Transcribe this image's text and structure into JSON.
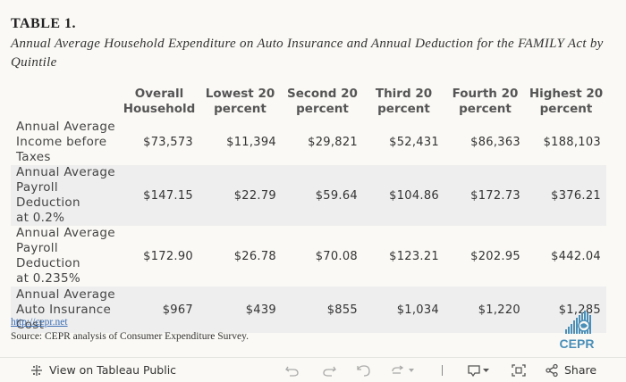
{
  "title": "TABLE 1.",
  "subtitle": "Annual Average Household Expenditure on Auto Insurance and Annual Deduction for the FAMILY Act by Quintile",
  "chart_data": {
    "type": "table",
    "columns": [
      {
        "line1": "Overall",
        "line2": "Household"
      },
      {
        "line1": "Lowest 20",
        "line2": "percent"
      },
      {
        "line1": "Second 20",
        "line2": "percent"
      },
      {
        "line1": "Third 20",
        "line2": "percent"
      },
      {
        "line1": "Fourth 20",
        "line2": "percent"
      },
      {
        "line1": "Highest 20",
        "line2": "percent"
      }
    ],
    "rows": [
      {
        "label": [
          "Annual Average",
          "Income before",
          "Taxes"
        ],
        "values": [
          "$73,573",
          "$11,394",
          "$29,821",
          "$52,431",
          "$86,363",
          "$188,103"
        ]
      },
      {
        "label": [
          "Annual Average",
          "Payroll Deduction",
          "at 0.2%"
        ],
        "values": [
          "$147.15",
          "$22.79",
          "$59.64",
          "$104.86",
          "$172.73",
          "$376.21"
        ]
      },
      {
        "label": [
          "Annual Average",
          "Payroll Deduction",
          "at 0.235%"
        ],
        "values": [
          "$172.90",
          "$26.78",
          "$70.08",
          "$123.21",
          "$202.95",
          "$442.04"
        ]
      },
      {
        "label": [
          "Annual Average",
          "Auto Insurance",
          "Cost"
        ],
        "values": [
          "$967",
          "$439",
          "$855",
          "$1,034",
          "$1,220",
          "$1,285"
        ]
      }
    ]
  },
  "footer": {
    "link": "http://cepr.net",
    "source": "Source: CEPR analysis of Consumer Expenditure Survey."
  },
  "logo": {
    "text": "CEPR",
    "color": "#4a8fb8"
  },
  "toolbar": {
    "view_label": "View on Tableau Public",
    "share_label": "Share"
  }
}
